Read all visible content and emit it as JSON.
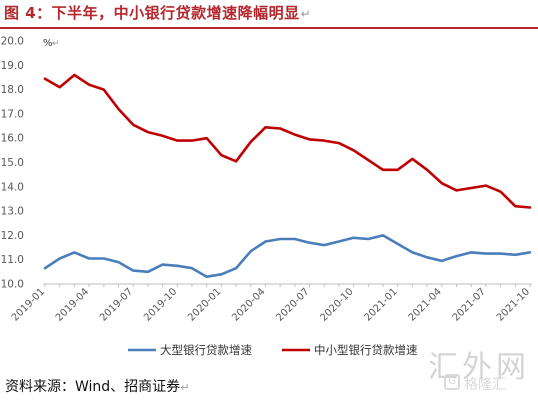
{
  "header": {
    "title": "图 4：下半年，中小银行贷款增速降幅明显",
    "title_mark": "↵"
  },
  "footer": {
    "source": "资料来源：Wind、招商证券",
    "source_mark": "↵"
  },
  "watermark": {
    "text": "汇外网",
    "sub": "格隆汇"
  },
  "colors": {
    "title": "#b4282d",
    "series_large": "#4a7ebb",
    "series_small": "#c00000"
  },
  "chart_data": {
    "type": "line",
    "unit": "%",
    "unit_mark": "↵",
    "ylim": [
      10.0,
      20.0
    ],
    "yticks": [
      "10.0",
      "11.0",
      "12.0",
      "13.0",
      "14.0",
      "15.0",
      "16.0",
      "17.0",
      "18.0",
      "19.0",
      "20.0"
    ],
    "x": [
      "2019-01",
      "2019-02",
      "2019-03",
      "2019-04",
      "2019-05",
      "2019-06",
      "2019-07",
      "2019-08",
      "2019-09",
      "2019-10",
      "2019-11",
      "2019-12",
      "2020-01",
      "2020-02",
      "2020-03",
      "2020-04",
      "2020-05",
      "2020-06",
      "2020-07",
      "2020-08",
      "2020-09",
      "2020-10",
      "2020-11",
      "2020-12",
      "2021-01",
      "2021-02",
      "2021-03",
      "2021-04",
      "2021-05",
      "2021-06",
      "2021-07",
      "2021-08",
      "2021-09",
      "2021-10"
    ],
    "xtick_labels": [
      "2019-01",
      "2019-04",
      "2019-07",
      "2019-10",
      "2020-01",
      "2020-04",
      "2020-07",
      "2020-10",
      "2021-01",
      "2021-04",
      "2021-07",
      "2021-10"
    ],
    "grid": false,
    "legend_position": "bottom",
    "series": [
      {
        "name": "大型银行贷款增速",
        "color": "#4a7ebb",
        "values": [
          10.65,
          11.05,
          11.3,
          11.05,
          11.05,
          10.9,
          10.55,
          10.5,
          10.8,
          10.75,
          10.65,
          10.3,
          10.4,
          10.65,
          11.35,
          11.75,
          11.85,
          11.85,
          11.7,
          11.6,
          11.75,
          11.9,
          11.85,
          12.0,
          11.65,
          11.3,
          11.1,
          10.95,
          11.15,
          11.3,
          11.25,
          11.25,
          11.2,
          11.3
        ]
      },
      {
        "name": "中小型银行贷款增速",
        "color": "#c00000",
        "values": [
          18.45,
          18.1,
          18.6,
          18.2,
          18.0,
          17.2,
          16.55,
          16.25,
          16.1,
          15.9,
          15.9,
          16.0,
          15.3,
          15.05,
          15.85,
          16.45,
          16.4,
          16.15,
          15.95,
          15.9,
          15.8,
          15.5,
          15.1,
          14.7,
          14.7,
          15.15,
          14.7,
          14.15,
          13.85,
          13.95,
          14.05,
          13.8,
          13.2,
          13.15
        ]
      }
    ]
  }
}
